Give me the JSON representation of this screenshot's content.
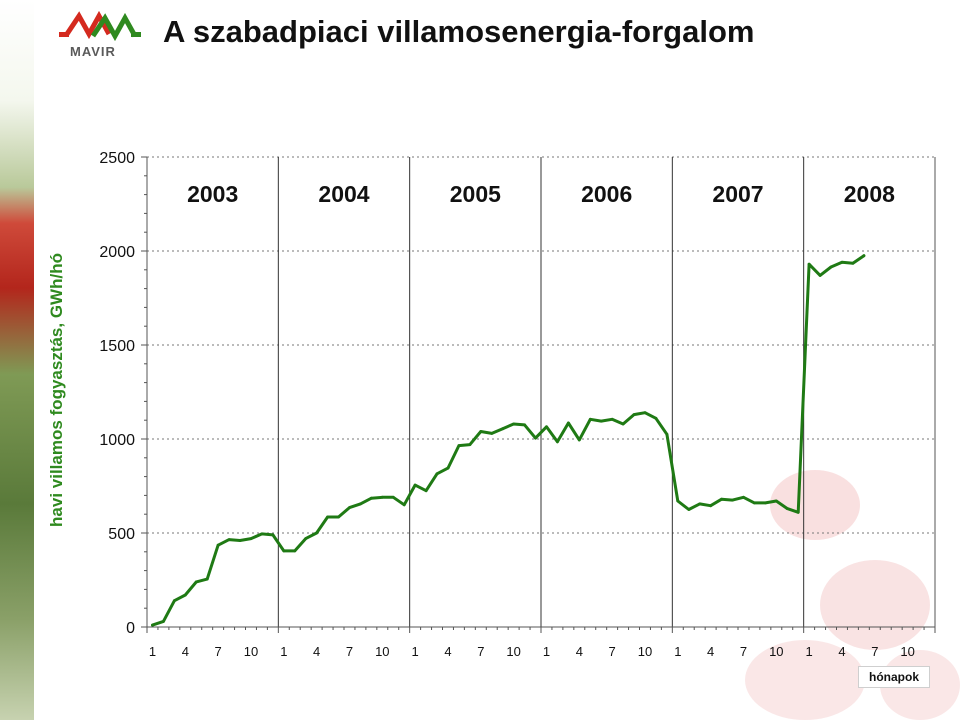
{
  "header": {
    "title": "A szabadpiaci villamosenergia-forgalom",
    "logo_text": "MAVIR"
  },
  "colors": {
    "line": "#1f7a14",
    "axis_label": "#2f8a1f",
    "logo_red": "#d42a1f",
    "logo_green": "#2f8a1f"
  },
  "chart_data": {
    "type": "line",
    "title": "",
    "ylabel": "havi villamos fogyasztás, GWh/hó",
    "xlabel": "hónapok",
    "ylim": [
      0,
      2500
    ],
    "yticks": [
      0,
      500,
      1000,
      1500,
      2000,
      2500
    ],
    "grid": "horizontal dotted at 500 steps, vertical solid year separators",
    "years": [
      "2003",
      "2004",
      "2005",
      "2006",
      "2007",
      "2008"
    ],
    "x_tick_labels": [
      "1",
      "4",
      "7",
      "10"
    ],
    "months_per_year": 12,
    "series": [
      {
        "values": [
          10,
          30,
          140,
          170,
          240,
          255,
          435,
          465,
          460,
          470,
          495,
          490,
          405,
          405,
          470,
          500,
          585,
          585,
          635,
          655,
          685,
          690,
          690,
          650,
          755,
          725,
          815,
          845,
          965,
          970,
          1040,
          1030,
          1055,
          1080,
          1075,
          1005,
          1065,
          985,
          1085,
          995,
          1105,
          1095,
          1105,
          1080,
          1130,
          1140,
          1110,
          1025,
          670,
          625,
          655,
          645,
          680,
          675,
          690,
          660,
          660,
          670,
          630,
          610,
          1930,
          1870,
          1915,
          1940,
          1935,
          1975
        ]
      }
    ]
  }
}
